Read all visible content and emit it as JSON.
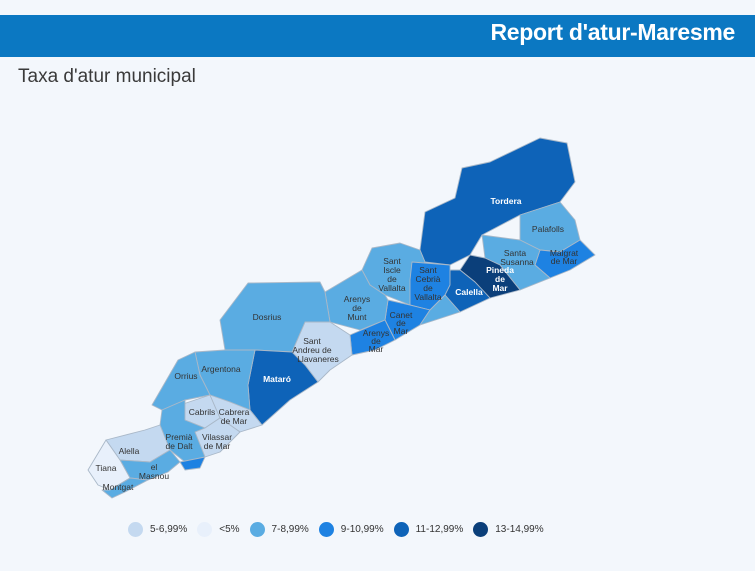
{
  "header": {
    "title": "Report d'atur-Maresme"
  },
  "subtitle": "Taxa d'atur municipal",
  "legend": [
    {
      "label": "5-6,99%",
      "color": "#c4d9f0"
    },
    {
      "label": "<5%",
      "color": "#e8f0fb"
    },
    {
      "label": "7-8,99%",
      "color": "#5aace2"
    },
    {
      "label": "9-10,99%",
      "color": "#1e82e2"
    },
    {
      "label": "11-12,99%",
      "color": "#0e63b8"
    },
    {
      "label": "13-14,99%",
      "color": "#0b3f7a"
    }
  ],
  "municipalities": {
    "tordera": "Tordera",
    "palafolls": "Palafolls",
    "santa_susanna": "Santa Susanna",
    "malgrat": "Malgrat de Mar",
    "pineda": "Pineda de Mar",
    "calella": "Calella",
    "sant_cebria": "Sant Cebrià de Vallalta",
    "sant_iscle": "Sant Iscle de Vallalta",
    "canet": "Canet de Mar",
    "arenys_munt": "Arenys de Munt",
    "arenys_mar": "Arenys de Mar",
    "sant_andreu": "Sant Andreu de Llavaneres",
    "dosrius": "Dosrius",
    "mataro": "Mataró",
    "argentona": "Argentona",
    "orrius": "Òrrius",
    "cabrils": "Cabrils",
    "cabrera": "Cabrera de Mar",
    "premia_dalt": "Premià de Dalt",
    "vilassar_mar": "Vilassar de Mar",
    "alella": "Alella",
    "tiana": "Tiana",
    "masnou": "el Masnou",
    "montgat": "Montgat"
  }
}
